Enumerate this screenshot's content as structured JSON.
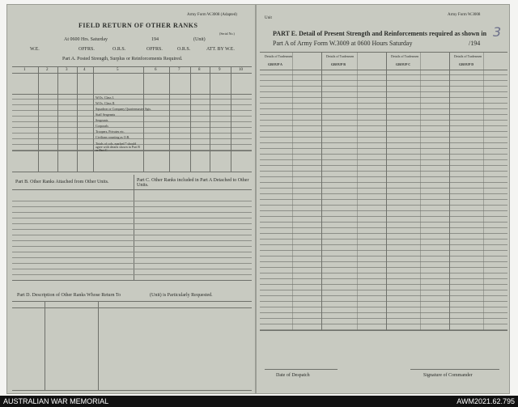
{
  "header": {
    "title": "FIELD RETURN OF OTHER RANKS",
    "form_left": "Army Form W.3008 (Adapted)",
    "form_right": "Army Form W.3008",
    "serial_no": "(Serial No.)",
    "unit": "Unit",
    "handwritten_page": "3"
  },
  "left": {
    "at_line": "At 0600 Hrs. Saturday",
    "year": "194",
    "unit_label": "(Unit)",
    "we_line": [
      "W.E.",
      "OFFRS.",
      "O.R.S.",
      "OFFRS.",
      "O.R.S.",
      "ATT. BY W.E."
    ],
    "part_a": "Part A. Posted Strength, Surplus or Reinforcements Required.",
    "col_numbers": [
      "1",
      "2",
      "3",
      "4",
      "5",
      "6",
      "7",
      "8",
      "9",
      "10"
    ],
    "ranks": [
      "W.Os. Class I.",
      "W.Os. Class II.",
      "Squadron or Company Quartermaster Sgts.",
      "Staff Sergeants",
      "Sergeants",
      "Corporals",
      "Troopers, Privates etc.",
      "Civilians counting as O.R.",
      "Totals of cols. marked * should agree with details shown in Part B or Part C"
    ],
    "part_b": "Part B. Other Ranks Attached from Other Units.",
    "part_c": "Part C. Other Ranks included in Part A Detached to Other Units.",
    "part_d": "Part D. Description of Other Ranks Whose Return To",
    "part_d_end": "(Unit) is Particularly Requested."
  },
  "right": {
    "part_e_1": "PART E. Detail of Present Strength and Reinforcements required as shown in",
    "part_e_2": "Part A of Army Form W.3009 at 0600 Hours Saturday",
    "year": "/194",
    "groups": [
      "GROUP A",
      "GROUP B",
      "GROUP C",
      "GROUP D"
    ],
    "details": "Details of Tradesmen",
    "date_of_despatch": "Date of Despatch",
    "signature": "Signature of Commander"
  },
  "footer": {
    "left": "AUSTRALIAN WAR MEMORIAL",
    "right": "AWM2021.62.795"
  }
}
